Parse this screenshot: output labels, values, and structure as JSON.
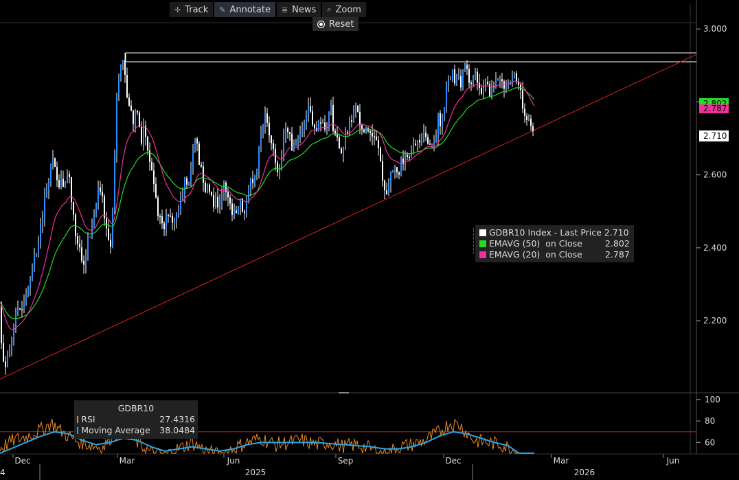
{
  "toolbar": {
    "track": "Track",
    "annotate": "Annotate",
    "news": "News",
    "zoom": "Zoom",
    "reset": "Reset"
  },
  "legend": {
    "rows": [
      {
        "label": "GDBR10 Index - Last Price",
        "value": "2.710",
        "color": "#ffffff"
      },
      {
        "label": "EMAVG (50)  on Close",
        "value": "2.802",
        "color": "#22dd22"
      },
      {
        "label": "EMAVG (20)  on Close",
        "value": "2.787",
        "color": "#ee3399"
      }
    ]
  },
  "price_tags": {
    "ema50": "2.802",
    "ema20": "2.787",
    "last": "2.710"
  },
  "rsi_legend": {
    "title": "GDBR10",
    "rows": [
      {
        "label": "RSI",
        "value": "27.4316",
        "color": "#f08a20"
      },
      {
        "label": "Moving Average",
        "value": "38.0484",
        "color": "#22aaee"
      }
    ]
  },
  "x_axis": {
    "month_ticks": [
      "Dec",
      "Mar",
      "Jun",
      "Sep",
      "Dec",
      "Mar",
      "Jun"
    ],
    "year_labels": [
      "2025",
      "2026"
    ],
    "edge_label": "4"
  },
  "chart_data": {
    "type": "candlestick",
    "ylim": [
      2.01,
      3.07
    ],
    "y_ticks": [
      "3.000",
      "2.800",
      "2.600",
      "2.400",
      "2.200"
    ],
    "rsi_ticks": [
      "100",
      "80",
      "60"
    ],
    "rsi_level_line": 70,
    "last_price": 2.71,
    "ema50_last": 2.802,
    "ema20_last": 2.787,
    "resistance_level": 2.92,
    "trendline": {
      "start": 2.04,
      "end": 2.93
    },
    "close_path": [
      [
        0,
        2.25
      ],
      [
        3,
        2.1
      ],
      [
        8,
        2.07
      ],
      [
        14,
        2.12
      ],
      [
        20,
        2.2
      ],
      [
        26,
        2.22
      ],
      [
        32,
        2.24
      ],
      [
        38,
        2.28
      ],
      [
        42,
        2.3
      ],
      [
        48,
        2.36
      ],
      [
        54,
        2.4
      ],
      [
        58,
        2.45
      ],
      [
        62,
        2.48
      ],
      [
        66,
        2.55
      ],
      [
        70,
        2.58
      ],
      [
        74,
        2.62
      ],
      [
        78,
        2.64
      ],
      [
        82,
        2.6
      ],
      [
        86,
        2.56
      ],
      [
        90,
        2.58
      ],
      [
        94,
        2.55
      ],
      [
        98,
        2.6
      ],
      [
        102,
        2.58
      ],
      [
        106,
        2.5
      ],
      [
        110,
        2.44
      ],
      [
        114,
        2.42
      ],
      [
        118,
        2.38
      ],
      [
        122,
        2.36
      ],
      [
        126,
        2.4
      ],
      [
        130,
        2.44
      ],
      [
        134,
        2.46
      ],
      [
        138,
        2.5
      ],
      [
        142,
        2.55
      ],
      [
        146,
        2.56
      ],
      [
        150,
        2.52
      ],
      [
        154,
        2.46
      ],
      [
        158,
        2.42
      ],
      [
        162,
        2.4
      ],
      [
        166,
        2.6
      ],
      [
        170,
        2.8
      ],
      [
        174,
        2.88
      ],
      [
        178,
        2.92
      ],
      [
        182,
        2.86
      ],
      [
        186,
        2.8
      ],
      [
        190,
        2.78
      ],
      [
        194,
        2.74
      ],
      [
        198,
        2.8
      ],
      [
        202,
        2.76
      ],
      [
        206,
        2.7
      ],
      [
        210,
        2.74
      ],
      [
        214,
        2.68
      ],
      [
        218,
        2.64
      ],
      [
        222,
        2.6
      ],
      [
        226,
        2.55
      ],
      [
        230,
        2.5
      ],
      [
        234,
        2.48
      ],
      [
        238,
        2.46
      ],
      [
        242,
        2.48
      ],
      [
        246,
        2.5
      ],
      [
        250,
        2.46
      ],
      [
        254,
        2.48
      ],
      [
        258,
        2.5
      ],
      [
        262,
        2.52
      ],
      [
        266,
        2.55
      ],
      [
        270,
        2.6
      ],
      [
        274,
        2.56
      ],
      [
        278,
        2.62
      ],
      [
        282,
        2.68
      ],
      [
        286,
        2.7
      ],
      [
        290,
        2.64
      ],
      [
        294,
        2.6
      ],
      [
        298,
        2.56
      ],
      [
        302,
        2.58
      ],
      [
        306,
        2.55
      ],
      [
        310,
        2.52
      ],
      [
        314,
        2.54
      ],
      [
        318,
        2.5
      ],
      [
        322,
        2.55
      ],
      [
        326,
        2.58
      ],
      [
        330,
        2.56
      ],
      [
        334,
        2.52
      ],
      [
        338,
        2.48
      ],
      [
        342,
        2.5
      ],
      [
        346,
        2.52
      ],
      [
        350,
        2.54
      ],
      [
        354,
        2.5
      ],
      [
        358,
        2.52
      ],
      [
        362,
        2.56
      ],
      [
        366,
        2.58
      ],
      [
        370,
        2.6
      ],
      [
        374,
        2.62
      ],
      [
        378,
        2.68
      ],
      [
        382,
        2.72
      ],
      [
        386,
        2.76
      ],
      [
        390,
        2.74
      ],
      [
        394,
        2.7
      ],
      [
        398,
        2.68
      ],
      [
        402,
        2.62
      ],
      [
        406,
        2.6
      ],
      [
        410,
        2.66
      ],
      [
        414,
        2.72
      ],
      [
        418,
        2.74
      ],
      [
        422,
        2.7
      ],
      [
        426,
        2.66
      ],
      [
        430,
        2.68
      ],
      [
        434,
        2.7
      ],
      [
        438,
        2.72
      ],
      [
        442,
        2.74
      ],
      [
        446,
        2.76
      ],
      [
        450,
        2.78
      ],
      [
        454,
        2.76
      ],
      [
        458,
        2.72
      ],
      [
        462,
        2.74
      ],
      [
        466,
        2.76
      ],
      [
        470,
        2.74
      ],
      [
        474,
        2.72
      ],
      [
        478,
        2.76
      ],
      [
        482,
        2.78
      ],
      [
        486,
        2.72
      ],
      [
        490,
        2.7
      ],
      [
        494,
        2.68
      ],
      [
        498,
        2.66
      ],
      [
        502,
        2.7
      ],
      [
        506,
        2.72
      ],
      [
        510,
        2.74
      ],
      [
        514,
        2.76
      ],
      [
        518,
        2.78
      ],
      [
        522,
        2.76
      ],
      [
        526,
        2.74
      ],
      [
        530,
        2.72
      ],
      [
        534,
        2.74
      ],
      [
        538,
        2.72
      ],
      [
        542,
        2.7
      ],
      [
        546,
        2.72
      ],
      [
        550,
        2.68
      ],
      [
        554,
        2.64
      ],
      [
        558,
        2.58
      ],
      [
        562,
        2.55
      ],
      [
        566,
        2.58
      ],
      [
        570,
        2.6
      ],
      [
        574,
        2.62
      ],
      [
        578,
        2.6
      ],
      [
        582,
        2.62
      ],
      [
        586,
        2.64
      ],
      [
        590,
        2.65
      ],
      [
        594,
        2.66
      ],
      [
        598,
        2.66
      ],
      [
        602,
        2.68
      ],
      [
        606,
        2.7
      ],
      [
        610,
        2.68
      ],
      [
        614,
        2.7
      ],
      [
        618,
        2.72
      ],
      [
        622,
        2.7
      ],
      [
        626,
        2.68
      ],
      [
        630,
        2.67
      ],
      [
        634,
        2.7
      ],
      [
        638,
        2.76
      ],
      [
        642,
        2.74
      ],
      [
        646,
        2.78
      ],
      [
        650,
        2.84
      ],
      [
        654,
        2.86
      ],
      [
        658,
        2.88
      ],
      [
        662,
        2.86
      ],
      [
        666,
        2.88
      ],
      [
        670,
        2.84
      ],
      [
        674,
        2.88
      ],
      [
        678,
        2.9
      ],
      [
        682,
        2.86
      ],
      [
        686,
        2.84
      ],
      [
        690,
        2.88
      ],
      [
        694,
        2.86
      ],
      [
        698,
        2.84
      ],
      [
        702,
        2.82
      ],
      [
        706,
        2.84
      ],
      [
        710,
        2.86
      ],
      [
        714,
        2.82
      ],
      [
        718,
        2.84
      ],
      [
        722,
        2.86
      ],
      [
        726,
        2.88
      ],
      [
        730,
        2.86
      ],
      [
        734,
        2.84
      ],
      [
        738,
        2.86
      ],
      [
        742,
        2.86
      ],
      [
        746,
        2.88
      ],
      [
        750,
        2.86
      ],
      [
        754,
        2.84
      ],
      [
        758,
        2.82
      ],
      [
        762,
        2.78
      ],
      [
        766,
        2.76
      ],
      [
        770,
        2.74
      ],
      [
        774,
        2.73
      ],
      [
        778,
        2.71
      ]
    ],
    "rsi_path": [
      [
        0,
        55
      ],
      [
        20,
        62
      ],
      [
        40,
        66
      ],
      [
        60,
        72
      ],
      [
        75,
        78
      ],
      [
        90,
        70
      ],
      [
        110,
        62
      ],
      [
        130,
        58
      ],
      [
        150,
        55
      ],
      [
        165,
        68
      ],
      [
        180,
        72
      ],
      [
        200,
        60
      ],
      [
        220,
        50
      ],
      [
        240,
        48
      ],
      [
        260,
        54
      ],
      [
        280,
        60
      ],
      [
        300,
        52
      ],
      [
        320,
        48
      ],
      [
        340,
        55
      ],
      [
        360,
        60
      ],
      [
        380,
        64
      ],
      [
        400,
        58
      ],
      [
        420,
        60
      ],
      [
        440,
        62
      ],
      [
        460,
        58
      ],
      [
        480,
        60
      ],
      [
        500,
        56
      ],
      [
        520,
        58
      ],
      [
        540,
        54
      ],
      [
        560,
        48
      ],
      [
        580,
        56
      ],
      [
        600,
        58
      ],
      [
        620,
        62
      ],
      [
        640,
        70
      ],
      [
        655,
        78
      ],
      [
        670,
        76
      ],
      [
        690,
        62
      ],
      [
        710,
        60
      ],
      [
        730,
        58
      ],
      [
        750,
        52
      ],
      [
        765,
        40
      ],
      [
        778,
        27
      ]
    ],
    "rsi_ma_path": [
      [
        0,
        50
      ],
      [
        30,
        58
      ],
      [
        60,
        66
      ],
      [
        80,
        70
      ],
      [
        100,
        68
      ],
      [
        120,
        62
      ],
      [
        140,
        58
      ],
      [
        160,
        60
      ],
      [
        180,
        64
      ],
      [
        200,
        62
      ],
      [
        220,
        56
      ],
      [
        240,
        52
      ],
      [
        260,
        54
      ],
      [
        280,
        56
      ],
      [
        300,
        54
      ],
      [
        320,
        52
      ],
      [
        340,
        54
      ],
      [
        360,
        58
      ],
      [
        380,
        60
      ],
      [
        400,
        60
      ],
      [
        420,
        60
      ],
      [
        440,
        60
      ],
      [
        460,
        60
      ],
      [
        480,
        59
      ],
      [
        500,
        58
      ],
      [
        520,
        57
      ],
      [
        540,
        56
      ],
      [
        560,
        54
      ],
      [
        580,
        54
      ],
      [
        600,
        56
      ],
      [
        620,
        60
      ],
      [
        640,
        66
      ],
      [
        660,
        70
      ],
      [
        680,
        68
      ],
      [
        700,
        64
      ],
      [
        720,
        60
      ],
      [
        740,
        57
      ],
      [
        760,
        48
      ],
      [
        778,
        38
      ]
    ]
  }
}
